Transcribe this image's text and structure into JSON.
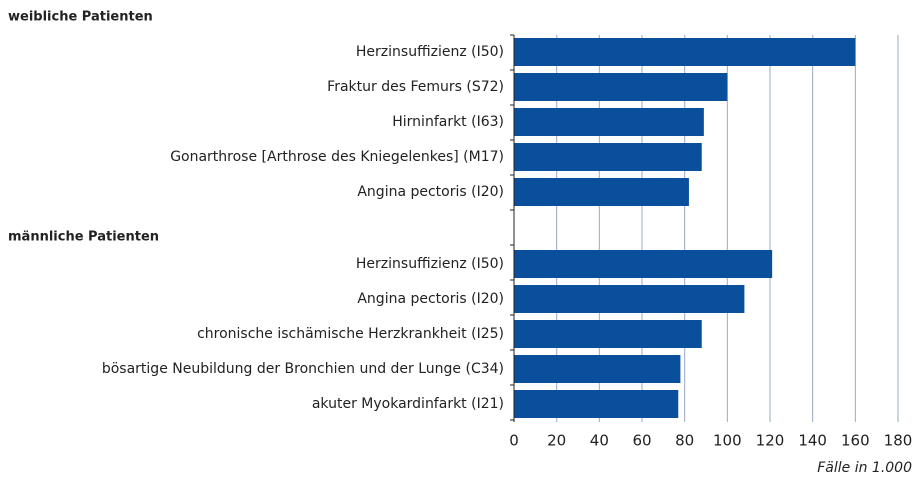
{
  "chart_data": {
    "type": "bar",
    "orientation": "horizontal",
    "color": "#0a4f9c",
    "groups": [
      {
        "name": "weibliche Patienten",
        "categories": [
          "Herzinsuffizienz (I50)",
          "Fraktur des Femurs (S72)",
          "Hirninfarkt (I63)",
          "Gonarthrose [Arthrose des Kniegelenkes] (M17)",
          "Angina pectoris (I20)"
        ],
        "values": [
          160,
          100,
          89,
          88,
          82
        ]
      },
      {
        "name": "männliche Patienten",
        "categories": [
          "Herzinsuffizienz (I50)",
          "Angina pectoris (I20)",
          "chronische ischämische Herzkrankheit (I25)",
          "bösartige Neubildung der Bronchien und der Lunge (C34)",
          "akuter Myokardinfarkt (I21)"
        ],
        "values": [
          121,
          108,
          88,
          78,
          77
        ]
      }
    ],
    "x_label": "Fälle in 1.000",
    "xlim": [
      0,
      180
    ],
    "xticks": [
      0,
      20,
      40,
      60,
      80,
      100,
      120,
      140,
      160,
      180
    ],
    "grid": true
  }
}
